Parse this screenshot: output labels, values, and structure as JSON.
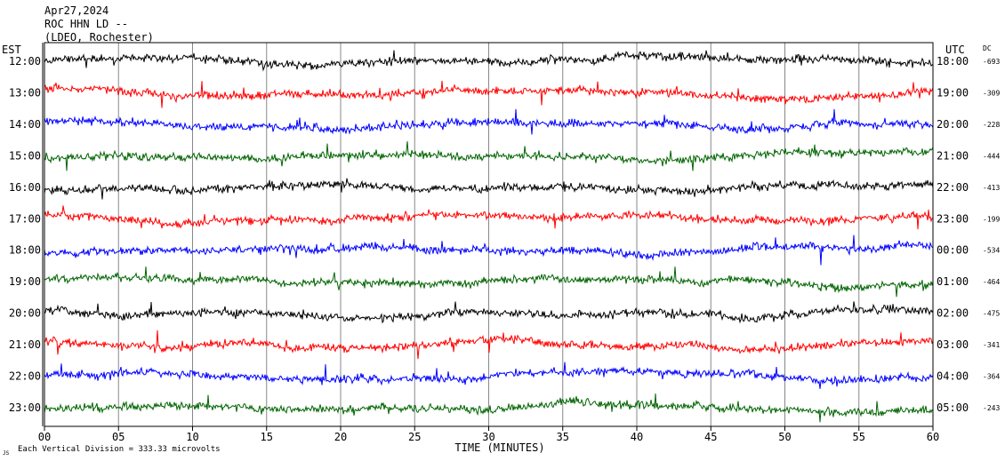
{
  "header": {
    "line1": "Apr27,2024",
    "line2": "ROC HHN LD --",
    "line3": "(LDEO, Rochester)"
  },
  "left_tz": "EST",
  "right_tz": "UTC",
  "dc_header": "DC",
  "footer_note": "Each Vertical Division =  333.33 microvolts",
  "corner_mark": "JS",
  "colors": {
    "black": "#000000",
    "red": "#ff0000",
    "blue": "#0000ff",
    "green": "#006400"
  },
  "chart_data": {
    "type": "line",
    "title": "",
    "xlabel": "TIME (MINUTES)",
    "ylabel": "",
    "xlim": [
      0,
      60
    ],
    "x_ticks": [
      "00",
      "05",
      "10",
      "15",
      "20",
      "25",
      "30",
      "35",
      "40",
      "45",
      "50",
      "55",
      "60"
    ],
    "grid": "vertical every 5 minutes",
    "rows": [
      {
        "est": "12:00",
        "utc": "18:00",
        "dc": "-693",
        "color": "black"
      },
      {
        "est": "13:00",
        "utc": "19:00",
        "dc": "-309",
        "color": "red"
      },
      {
        "est": "14:00",
        "utc": "20:00",
        "dc": "-228",
        "color": "blue"
      },
      {
        "est": "15:00",
        "utc": "21:00",
        "dc": "-444",
        "color": "green"
      },
      {
        "est": "16:00",
        "utc": "22:00",
        "dc": "-413",
        "color": "black"
      },
      {
        "est": "17:00",
        "utc": "23:00",
        "dc": "-199",
        "color": "red"
      },
      {
        "est": "18:00",
        "utc": "00:00",
        "dc": "-534",
        "color": "blue"
      },
      {
        "est": "19:00",
        "utc": "01:00",
        "dc": "-464",
        "color": "green"
      },
      {
        "est": "20:00",
        "utc": "02:00",
        "dc": "-475",
        "color": "black"
      },
      {
        "est": "21:00",
        "utc": "03:00",
        "dc": "-341",
        "color": "red"
      },
      {
        "est": "22:00",
        "utc": "04:00",
        "dc": "-364",
        "color": "blue"
      },
      {
        "est": "23:00",
        "utc": "05:00",
        "dc": "-243",
        "color": "green"
      }
    ]
  }
}
